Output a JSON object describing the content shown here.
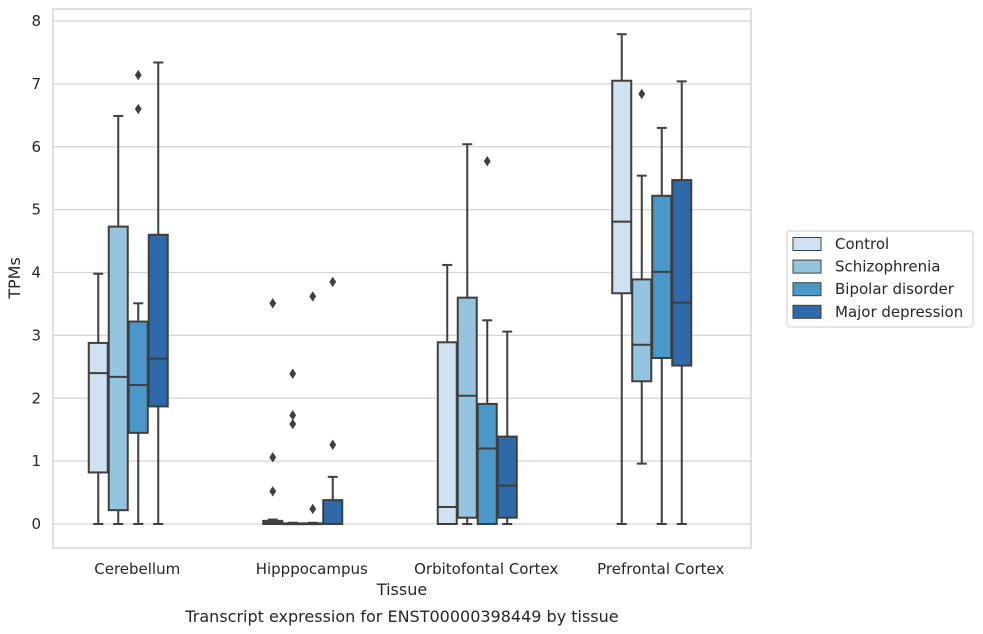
{
  "caption": "Transcript expression for ENST00000398449 by tissue",
  "chart_data": {
    "type": "box",
    "title": "",
    "xlabel": "Tissue",
    "ylabel": "TPMs",
    "ylim": [
      -0.38,
      8.18
    ],
    "yticks": [
      0,
      1,
      2,
      3,
      4,
      5,
      6,
      7,
      8
    ],
    "grid": true,
    "legend_position": "right",
    "categories": [
      "Cerebellum",
      "Hipppocampus",
      "Orbitofontal Cortex",
      "Prefrontal Cortex"
    ],
    "series": [
      {
        "name": "Control",
        "color": "#d0e1f2",
        "boxes": [
          {
            "whisker_low": 0,
            "q1": 0.82,
            "median": 2.4,
            "q3": 2.88,
            "whisker_high": 3.98,
            "outliers": []
          },
          {
            "whisker_low": 0,
            "q1": 0.0,
            "median": 0.02,
            "q3": 0.05,
            "whisker_high": 0.07,
            "outliers": [
              0.52,
              1.06,
              3.51
            ]
          },
          {
            "whisker_low": 0,
            "q1": 0.0,
            "median": 0.27,
            "q3": 2.89,
            "whisker_high": 4.12,
            "outliers": []
          },
          {
            "whisker_low": 0,
            "q1": 3.67,
            "median": 4.81,
            "q3": 7.05,
            "whisker_high": 7.79,
            "outliers": []
          }
        ]
      },
      {
        "name": "Schizophrenia",
        "color": "#94c4df",
        "boxes": [
          {
            "whisker_low": 0,
            "q1": 0.22,
            "median": 2.34,
            "q3": 4.73,
            "whisker_high": 6.49,
            "outliers": []
          },
          {
            "whisker_low": 0,
            "q1": 0.0,
            "median": 0.0,
            "q3": 0.01,
            "whisker_high": 0.02,
            "outliers": [
              1.59,
              1.73,
              2.39
            ]
          },
          {
            "whisker_low": 0,
            "q1": 0.1,
            "median": 2.04,
            "q3": 3.6,
            "whisker_high": 6.04,
            "outliers": []
          },
          {
            "whisker_low": 0.96,
            "q1": 2.27,
            "median": 2.85,
            "q3": 3.89,
            "whisker_high": 5.54,
            "outliers": [
              6.84
            ]
          }
        ]
      },
      {
        "name": "Bipolar disorder",
        "color": "#4a98c9",
        "boxes": [
          {
            "whisker_low": 0,
            "q1": 1.45,
            "median": 2.21,
            "q3": 3.22,
            "whisker_high": 3.51,
            "outliers": [
              6.6,
              7.14
            ]
          },
          {
            "whisker_low": 0,
            "q1": 0.0,
            "median": 0.0,
            "q3": 0.01,
            "whisker_high": 0.02,
            "outliers": [
              0.24,
              3.62
            ]
          },
          {
            "whisker_low": 0,
            "q1": 0.0,
            "median": 1.2,
            "q3": 1.91,
            "whisker_high": 3.24,
            "outliers": [
              5.77
            ]
          },
          {
            "whisker_low": 0,
            "q1": 2.64,
            "median": 4.01,
            "q3": 5.22,
            "whisker_high": 6.3,
            "outliers": []
          }
        ]
      },
      {
        "name": "Major depression",
        "color": "#2e69a9",
        "boxes": [
          {
            "whisker_low": 0,
            "q1": 1.87,
            "median": 2.63,
            "q3": 4.6,
            "whisker_high": 7.34,
            "outliers": []
          },
          {
            "whisker_low": 0,
            "q1": 0.0,
            "median": 0.0,
            "q3": 0.38,
            "whisker_high": 0.75,
            "outliers": [
              1.26,
              3.85
            ]
          },
          {
            "whisker_low": 0,
            "q1": 0.1,
            "median": 0.61,
            "q3": 1.39,
            "whisker_high": 3.06,
            "outliers": []
          },
          {
            "whisker_low": 0,
            "q1": 2.52,
            "median": 3.52,
            "q3": 5.47,
            "whisker_high": 7.04,
            "outliers": []
          }
        ]
      }
    ]
  }
}
